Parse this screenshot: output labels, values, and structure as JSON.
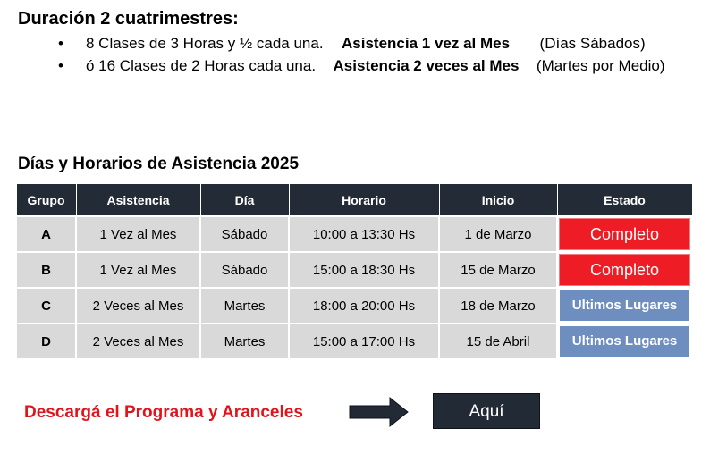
{
  "duration": {
    "title": "Duración 2 cuatrimestres:",
    "options": [
      {
        "bullet": "•",
        "text": "8 Clases de 3 Horas y ½ cada una.",
        "emphasis": "Asistencia 1 vez al Mes",
        "note": "(Días Sábados)"
      },
      {
        "bullet": "•",
        "text": "ó 16 Clases de 2 Horas cada una.",
        "emphasis": "Asistencia 2 veces al Mes",
        "note": "(Martes por Medio)"
      }
    ]
  },
  "schedule": {
    "title": "Días y Horarios de Asistencia 2025",
    "columns": [
      "Grupo",
      "Asistencia",
      "Día",
      "Horario",
      "Inicio",
      "Estado"
    ],
    "rows": [
      {
        "group": "A",
        "attendance": "1 Vez al Mes",
        "day": "Sábado",
        "time": "10:00 a 13:30 Hs",
        "start": "1 de Marzo",
        "status": "Completo",
        "status_type": "complete"
      },
      {
        "group": "B",
        "attendance": "1 Vez al Mes",
        "day": "Sábado",
        "time": "15:00 a 18:30 Hs",
        "start": "15 de Marzo",
        "status": "Completo",
        "status_type": "complete"
      },
      {
        "group": "C",
        "attendance": "2 Veces al Mes",
        "day": "Martes",
        "time": "18:00 a 20:00 Hs",
        "start": "18 de Marzo",
        "status": "Ultimos Lugares",
        "status_type": "limited"
      },
      {
        "group": "D",
        "attendance": "2 Veces al Mes",
        "day": "Martes",
        "time": "15:00 a 17:00 Hs",
        "start": "15 de Abril",
        "status": "Ultimos Lugares",
        "status_type": "limited"
      }
    ]
  },
  "cta": {
    "download_text": "Descargá el Programa y Aranceles",
    "arrow_icon": "arrow-right-icon",
    "button_label": "Aquí"
  },
  "colors": {
    "header_bg": "#232b36",
    "complete": "#ee1c24",
    "limited": "#6f8ec0",
    "cta_text": "#e3131b"
  }
}
